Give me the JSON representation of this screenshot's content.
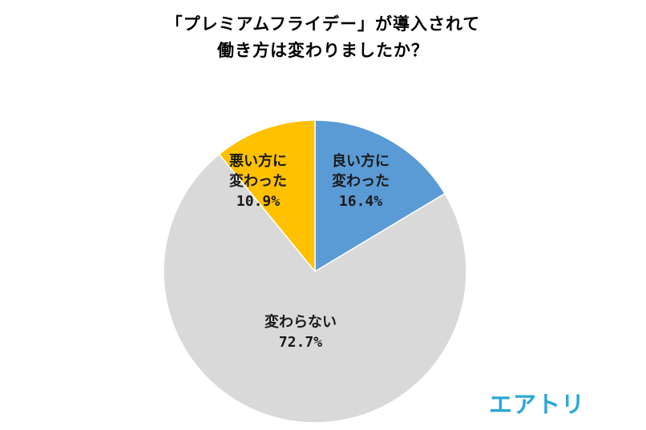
{
  "chart_data": {
    "type": "pie",
    "title": [
      "「プレミアムフライデー」が導入されて",
      "働き方は変わりましたか？"
    ],
    "slices": [
      {
        "label": [
          "良い方に",
          "変わった"
        ],
        "value_label": "16.4%",
        "value": 16.4,
        "color": "#5b9bd5"
      },
      {
        "label": [
          "変わらない"
        ],
        "value_label": "72.7%",
        "value": 72.7,
        "color": "#d9d9d9"
      },
      {
        "label": [
          "悪い方に",
          "変わった"
        ],
        "value_label": "10.9%",
        "value": 10.9,
        "color": "#ffc000"
      }
    ],
    "start": "12 o'clock, clockwise"
  },
  "brand": {
    "logo_text": "エアトリ",
    "color": "#2aa8d8"
  }
}
